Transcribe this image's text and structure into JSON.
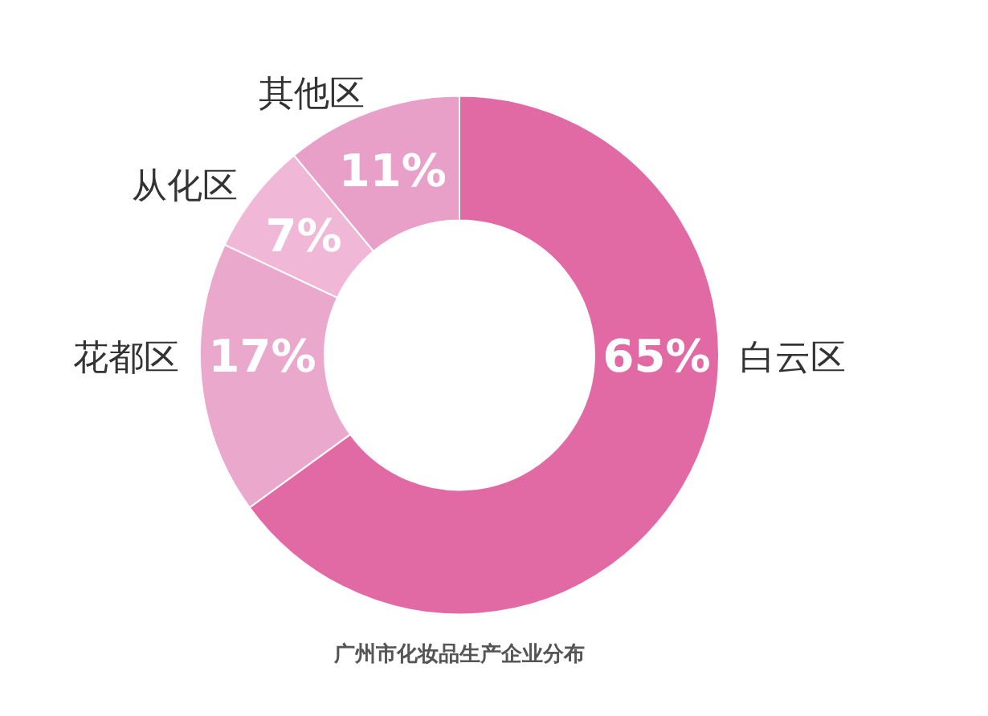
{
  "chart_data": {
    "type": "donut",
    "title": "广州市化妆品生产企业分布",
    "categories": [
      "白云区",
      "花都区",
      "从化区",
      "其他区"
    ],
    "values": [
      65,
      17,
      7,
      11
    ],
    "colors": [
      "#e26aa4",
      "#eaa8cd",
      "#f0b8d6",
      "#e8a0c8"
    ],
    "value_labels": [
      "65%",
      "17%",
      "7%",
      "11%"
    ],
    "legend": false
  }
}
